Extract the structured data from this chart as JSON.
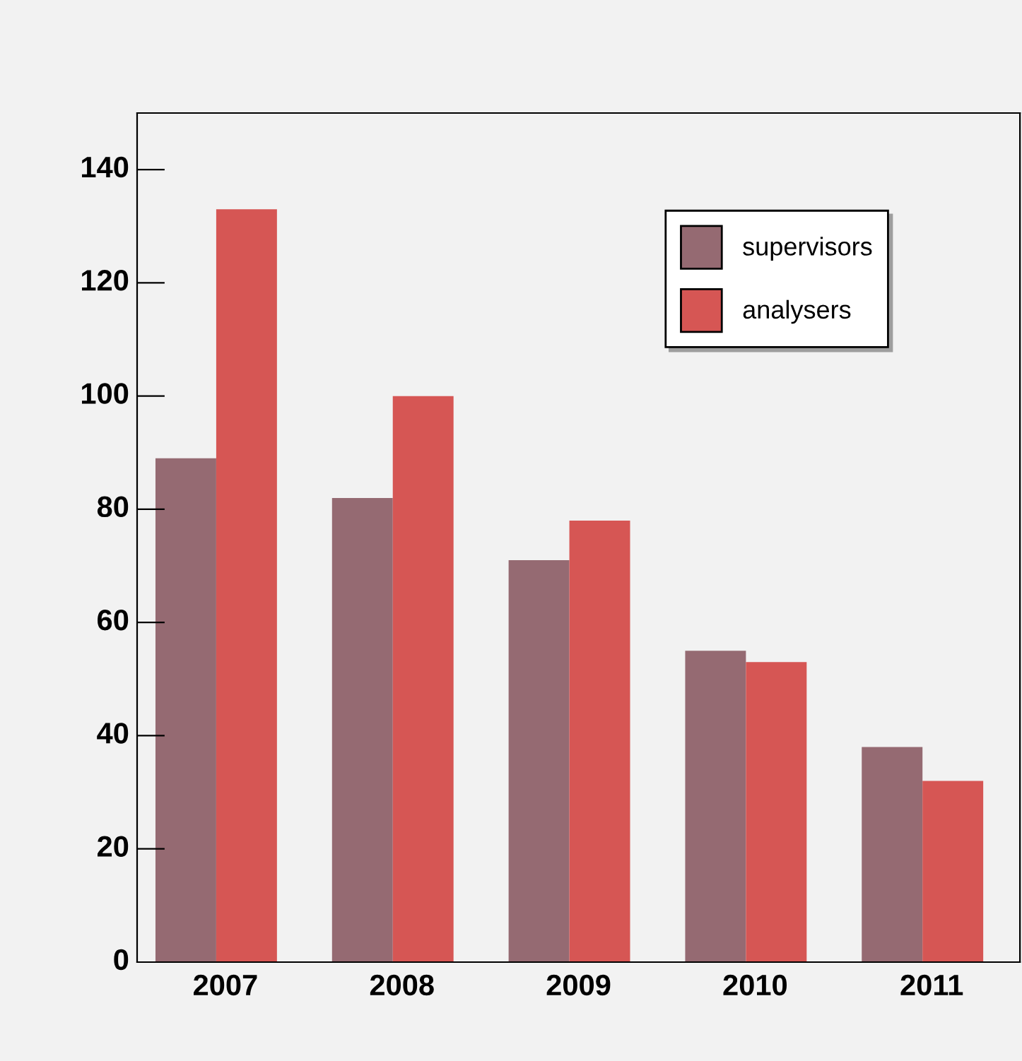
{
  "chart_data": {
    "type": "bar",
    "categories": [
      "2007",
      "2008",
      "2009",
      "2010",
      "2011"
    ],
    "series": [
      {
        "name": "supervisors",
        "color": "#956a72",
        "values": [
          89,
          82,
          71,
          55,
          38
        ]
      },
      {
        "name": "analysers",
        "color": "#d65654",
        "values": [
          133,
          100,
          78,
          53,
          32
        ]
      }
    ],
    "ylim": [
      0,
      150
    ],
    "yticks": [
      0,
      20,
      40,
      60,
      80,
      100,
      120,
      140
    ],
    "grid": false,
    "legend": "top right"
  }
}
